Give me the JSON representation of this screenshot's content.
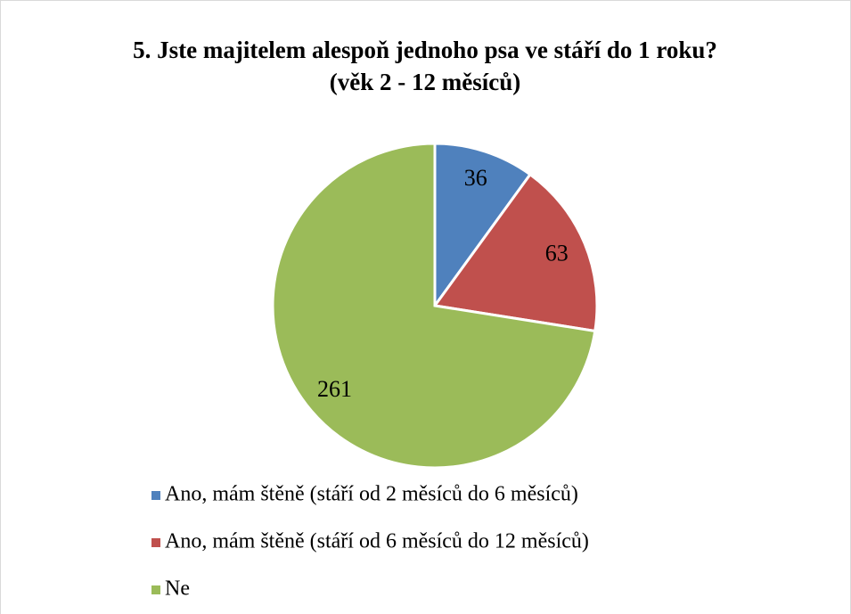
{
  "chart_data": {
    "type": "pie",
    "title": "5. Jste majitelem alespoň jednoho psa ve stáří do 1 roku? (věk 2 - 12 měsíců)",
    "categories": [
      "Ano, mám štěně (stáří od 2 měsíců do 6 měsíců)",
      "Ano, mám štěně (stáří od 6 měsíců do 12 měsíců)",
      "Ne"
    ],
    "values": [
      36,
      63,
      261
    ],
    "colors": [
      "#4f81bd",
      "#c0504d",
      "#9bbb59"
    ],
    "legend": "bottom"
  }
}
